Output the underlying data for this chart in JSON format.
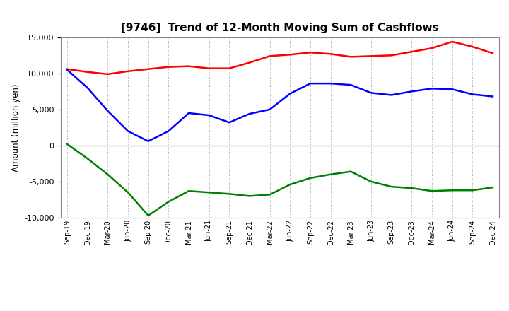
{
  "title": "[9746]  Trend of 12-Month Moving Sum of Cashflows",
  "ylabel": "Amount (million yen)",
  "xlabels": [
    "Sep-19",
    "Dec-19",
    "Mar-20",
    "Jun-20",
    "Sep-20",
    "Dec-20",
    "Mar-21",
    "Jun-21",
    "Sep-21",
    "Dec-21",
    "Mar-22",
    "Jun-22",
    "Sep-22",
    "Dec-22",
    "Mar-23",
    "Jun-23",
    "Sep-23",
    "Dec-23",
    "Mar-24",
    "Jun-24",
    "Sep-24",
    "Dec-24"
  ],
  "operating": [
    10600,
    10200,
    9900,
    10300,
    10600,
    10900,
    11000,
    10700,
    10700,
    11500,
    12400,
    12600,
    12900,
    12700,
    12300,
    12400,
    12500,
    13000,
    13500,
    14400,
    13700,
    12800
  ],
  "investing": [
    200,
    -1800,
    -4000,
    -6500,
    -9700,
    -7800,
    -6300,
    -6500,
    -6700,
    -7000,
    -6800,
    -5400,
    -4500,
    -4000,
    -3600,
    -5000,
    -5700,
    -5900,
    -6300,
    -6200,
    -6200,
    -5800
  ],
  "free": [
    10500,
    8000,
    4800,
    2000,
    600,
    2000,
    4500,
    4200,
    3200,
    4400,
    5000,
    7200,
    8600,
    8600,
    8400,
    7300,
    7000,
    7500,
    7900,
    7800,
    7100,
    6800
  ],
  "operating_color": "#ff0000",
  "investing_color": "#008000",
  "free_color": "#0000ff",
  "ylim": [
    -10000,
    15000
  ],
  "yticks": [
    -10000,
    -5000,
    0,
    5000,
    10000,
    15000
  ],
  "bg_color": "#ffffff",
  "plot_bg_color": "#ffffff",
  "grid_color": "#999999",
  "linewidth": 1.8
}
